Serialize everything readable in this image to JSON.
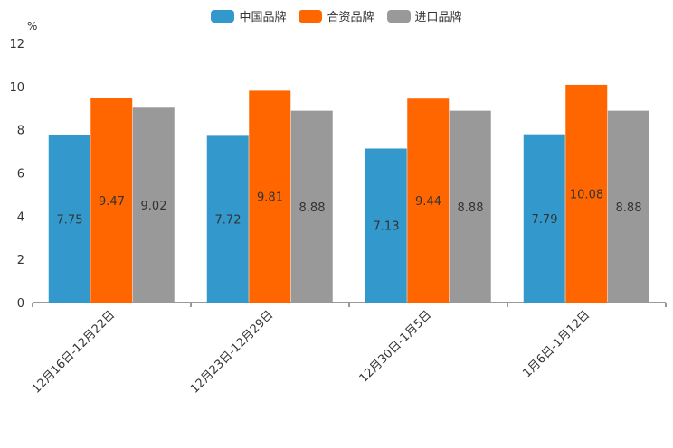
{
  "chart_data": {
    "type": "bar",
    "title": "",
    "unit": "%",
    "categories": [
      "12月16日-12月22日",
      "12月23日-12月29日",
      "12月30日-1月5日",
      "1月6日-1月12日"
    ],
    "series": [
      {
        "name": "中国品牌",
        "color": "#3399cc",
        "values": [
          7.75,
          7.72,
          7.13,
          7.79
        ]
      },
      {
        "name": "合资品牌",
        "color": "#ff6600",
        "values": [
          9.47,
          9.81,
          9.44,
          10.08
        ]
      },
      {
        "name": "进口品牌",
        "color": "#999999",
        "values": [
          9.02,
          8.88,
          8.88,
          8.88
        ]
      }
    ],
    "ylim": [
      0,
      12
    ],
    "yticks": [
      0,
      2,
      4,
      6,
      8,
      10,
      12
    ],
    "legend": "top-center",
    "grid": false
  }
}
